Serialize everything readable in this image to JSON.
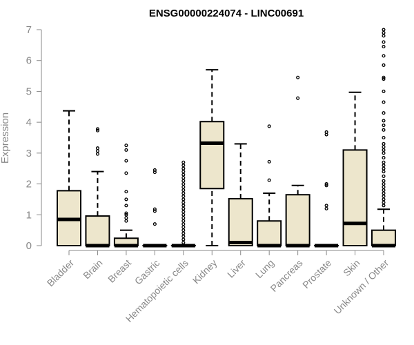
{
  "chart_data": {
    "type": "boxplot",
    "title": "ENSG00000224074 - LINC00691",
    "ylabel": "Expression",
    "xlabel": "",
    "ylim": [
      0,
      7
    ],
    "yticks": [
      0,
      1,
      2,
      3,
      4,
      5,
      6,
      7
    ],
    "box_color": "#ede6cc",
    "categories": [
      "Bladder",
      "Brain",
      "Breast",
      "Gastric",
      "Hematopoietic cells",
      "Kidney",
      "Liver",
      "Lung",
      "Pancreas",
      "Prostate",
      "Skin",
      "Unknown / Other"
    ],
    "boxes": [
      {
        "whisker_low": 0,
        "q1": 0,
        "median": 0.85,
        "q3": 1.78,
        "whisker_high": 4.37,
        "outliers": []
      },
      {
        "whisker_low": 0,
        "q1": 0,
        "median": 0.0,
        "q3": 0.96,
        "whisker_high": 2.4,
        "outliers": [
          2.97,
          3.07,
          3.16,
          3.73,
          3.78
        ]
      },
      {
        "whisker_low": 0,
        "q1": 0,
        "median": 0.0,
        "q3": 0.24,
        "whisker_high": 0.5,
        "outliers": [
          0.8,
          0.9,
          1.0,
          1.05,
          1.3,
          1.5,
          1.75,
          2.35,
          2.75,
          3.1,
          3.25
        ]
      },
      {
        "whisker_low": 0,
        "q1": 0,
        "median": 0.0,
        "q3": 0.0,
        "whisker_high": 0.0,
        "outliers": [
          0.7,
          1.12,
          1.18,
          2.38,
          2.45
        ]
      },
      {
        "whisker_low": 0,
        "q1": 0,
        "median": 0.0,
        "q3": 0.0,
        "whisker_high": 0.0,
        "outliers": [
          0.1,
          0.2,
          0.3,
          0.4,
          0.5,
          0.6,
          0.7,
          0.8,
          0.9,
          1.0,
          1.1,
          1.2,
          1.3,
          1.4,
          1.5,
          1.6,
          1.7,
          1.8,
          1.9,
          2.0,
          2.1,
          2.2,
          2.3,
          2.4,
          2.5,
          2.6,
          2.7
        ]
      },
      {
        "whisker_low": 0,
        "q1": 1.85,
        "median": 3.32,
        "q3": 4.02,
        "whisker_high": 5.7,
        "outliers": []
      },
      {
        "whisker_low": 0,
        "q1": 0,
        "median": 0.1,
        "q3": 1.52,
        "whisker_high": 3.3,
        "outliers": []
      },
      {
        "whisker_low": 0,
        "q1": 0,
        "median": 0.0,
        "q3": 0.8,
        "whisker_high": 1.7,
        "outliers": [
          2.12,
          2.72,
          3.87
        ]
      },
      {
        "whisker_low": 0,
        "q1": 0,
        "median": 0.0,
        "q3": 1.65,
        "whisker_high": 1.95,
        "outliers": [
          4.78,
          5.45
        ]
      },
      {
        "whisker_low": 0,
        "q1": 0,
        "median": 0.0,
        "q3": 0.0,
        "whisker_high": 0.0,
        "outliers": [
          1.2,
          1.3,
          1.95,
          2.0,
          3.6,
          3.68
        ]
      },
      {
        "whisker_low": 0,
        "q1": 0,
        "median": 0.72,
        "q3": 3.1,
        "whisker_high": 4.97,
        "outliers": []
      },
      {
        "whisker_low": 0,
        "q1": 0,
        "median": 0.0,
        "q3": 0.5,
        "whisker_high": 1.18,
        "outliers": [
          1.3,
          1.4,
          1.5,
          1.6,
          1.7,
          1.8,
          1.9,
          2.0,
          2.1,
          2.25,
          2.4,
          2.5,
          2.6,
          2.7,
          2.85,
          3.0,
          3.1,
          3.2,
          3.3,
          3.5,
          3.75,
          3.9,
          4.05,
          4.3,
          4.65,
          5.0,
          5.4,
          5.45,
          5.85,
          6.15,
          6.45,
          6.6,
          6.8,
          6.9,
          7.0
        ]
      }
    ]
  }
}
